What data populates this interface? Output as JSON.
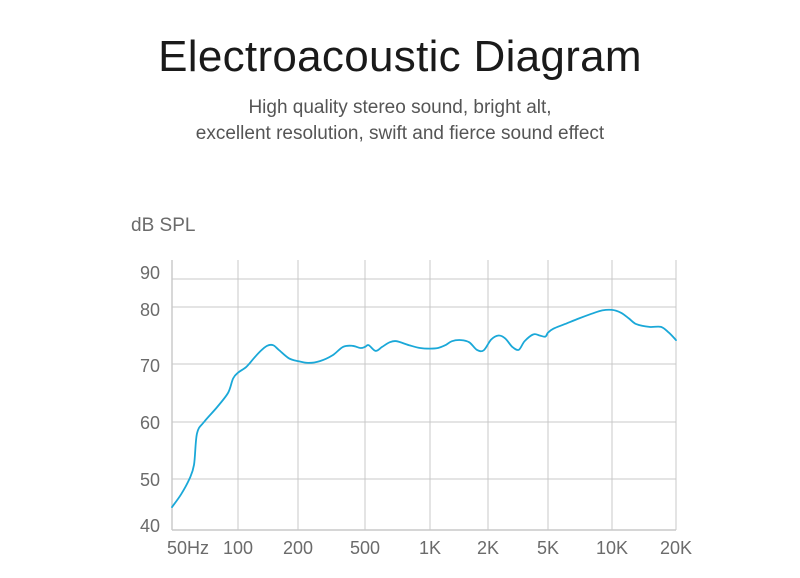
{
  "header": {
    "title": "Electroacoustic Diagram",
    "subtitle_line1": "High quality stereo sound, bright alt,",
    "subtitle_line2": "excellent resolution, swift and fierce sound effect"
  },
  "chart_data": {
    "type": "line",
    "title": "Electroacoustic Diagram",
    "xlabel": "",
    "ylabel": "dB SPL",
    "x_scale": "log",
    "x_ticks": [
      {
        "value": 50,
        "label": "50Hz"
      },
      {
        "value": 100,
        "label": "100"
      },
      {
        "value": 200,
        "label": "200"
      },
      {
        "value": 500,
        "label": "500"
      },
      {
        "value": 1000,
        "label": "1K"
      },
      {
        "value": 2000,
        "label": "2K"
      },
      {
        "value": 5000,
        "label": "5K"
      },
      {
        "value": 10000,
        "label": "10K"
      },
      {
        "value": 20000,
        "label": "20K"
      }
    ],
    "y_ticks": [
      40,
      50,
      60,
      70,
      80,
      90
    ],
    "xlim": [
      50,
      20000
    ],
    "ylim": [
      40,
      90
    ],
    "grid": true,
    "line_color": "#1aa8d8",
    "grid_color": "#c8c8c8",
    "series": [
      {
        "x": [
          50,
          55,
          60,
          63,
          65,
          70,
          80,
          90,
          95,
          100,
          110,
          120,
          130,
          140,
          150,
          160,
          180,
          200,
          230,
          270,
          320,
          370,
          420,
          470,
          500,
          520,
          560,
          600,
          650,
          700,
          800,
          900,
          1000,
          1100,
          1200,
          1300,
          1450,
          1600,
          1750,
          1900,
          2100,
          2350,
          2600,
          2900,
          3200,
          3500,
          4000,
          4400,
          4800,
          5000,
          5300,
          6000,
          7000,
          8000,
          9000,
          10000,
          11000,
          12000,
          13000,
          15000,
          17000,
          18500,
          20000
        ],
        "y": [
          44.5,
          47,
          50,
          52.5,
          58,
          60,
          62.5,
          65,
          67.5,
          68.5,
          69.5,
          71,
          72.3,
          73.2,
          73.3,
          72.5,
          71,
          70.5,
          70.2,
          70.5,
          71.5,
          73,
          73.2,
          72.8,
          73,
          73.3,
          72.3,
          73,
          73.8,
          74,
          73.3,
          72.8,
          72.7,
          72.8,
          73.3,
          74,
          74.2,
          73.8,
          72.5,
          72.4,
          74.3,
          75,
          74.5,
          73,
          72.5,
          74,
          75.2,
          75,
          74.8,
          75.5,
          76.2,
          77,
          78,
          78.8,
          79.4,
          79.5,
          79,
          78,
          77,
          76.5,
          76.5,
          75.5,
          74.2
        ]
      }
    ]
  }
}
